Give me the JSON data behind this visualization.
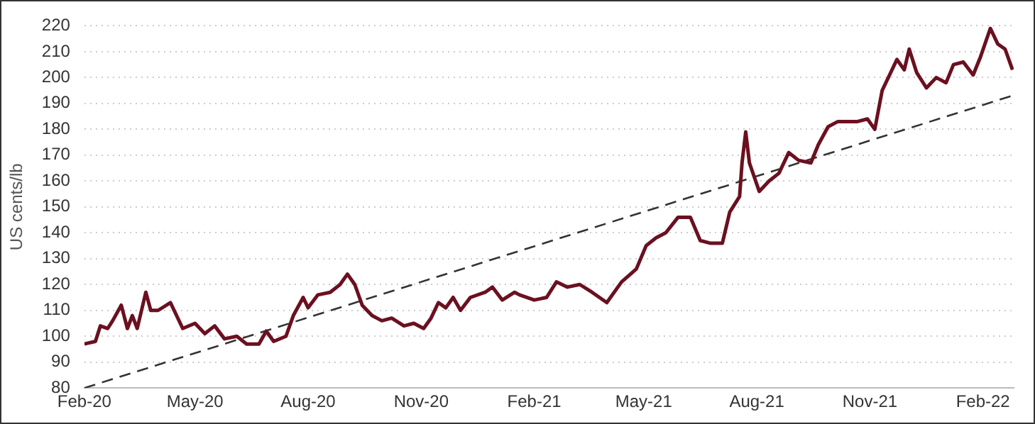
{
  "chart_data": {
    "type": "line",
    "ylabel": "US cents/lb",
    "ylim": [
      80,
      220
    ],
    "yticks": [
      80,
      90,
      100,
      110,
      120,
      130,
      140,
      150,
      160,
      170,
      180,
      190,
      200,
      210,
      220
    ],
    "xlim": [
      "2020-02-01",
      "2022-02-26"
    ],
    "xticks": [
      {
        "value": "2020-02-01",
        "label": "Feb-20"
      },
      {
        "value": "2020-05-01",
        "label": "May-20"
      },
      {
        "value": "2020-08-01",
        "label": "Aug-20"
      },
      {
        "value": "2020-11-01",
        "label": "Nov-20"
      },
      {
        "value": "2021-02-01",
        "label": "Feb-21"
      },
      {
        "value": "2021-05-01",
        "label": "May-21"
      },
      {
        "value": "2021-08-01",
        "label": "Aug-21"
      },
      {
        "value": "2021-11-01",
        "label": "Nov-21"
      },
      {
        "value": "2022-02-01",
        "label": "Feb-22"
      }
    ],
    "grid": "y",
    "legend": false,
    "marker": "none",
    "series": [
      {
        "color": "#6b1020",
        "line_style": "solid",
        "x": [
          "2020-02-01",
          "2020-02-10",
          "2020-02-14",
          "2020-02-20",
          "2020-02-24",
          "2020-03-02",
          "2020-03-07",
          "2020-03-11",
          "2020-03-15",
          "2020-03-22",
          "2020-03-26",
          "2020-04-01",
          "2020-04-11",
          "2020-04-21",
          "2020-05-01",
          "2020-05-09",
          "2020-05-17",
          "2020-05-25",
          "2020-06-04",
          "2020-06-12",
          "2020-06-22",
          "2020-06-28",
          "2020-07-04",
          "2020-07-14",
          "2020-07-20",
          "2020-07-28",
          "2020-08-01",
          "2020-08-09",
          "2020-08-19",
          "2020-08-27",
          "2020-09-02",
          "2020-09-08",
          "2020-09-14",
          "2020-09-22",
          "2020-09-30",
          "2020-10-08",
          "2020-10-18",
          "2020-10-26",
          "2020-11-03",
          "2020-11-09",
          "2020-11-15",
          "2020-11-21",
          "2020-11-27",
          "2020-12-03",
          "2020-12-11",
          "2020-12-23",
          "2020-12-29",
          "2021-01-06",
          "2021-01-16",
          "2021-01-20",
          "2021-02-01",
          "2021-02-11",
          "2021-02-19",
          "2021-02-28",
          "2021-03-10",
          "2021-03-20",
          "2021-04-01",
          "2021-04-13",
          "2021-04-25",
          "2021-05-03",
          "2021-05-11",
          "2021-05-19",
          "2021-05-29",
          "2021-06-08",
          "2021-06-16",
          "2021-06-24",
          "2021-07-04",
          "2021-07-10",
          "2021-07-18",
          "2021-07-20",
          "2021-07-23",
          "2021-07-26",
          "2021-08-03",
          "2021-08-11",
          "2021-08-19",
          "2021-08-27",
          "2021-09-04",
          "2021-09-14",
          "2021-09-20",
          "2021-09-28",
          "2021-10-06",
          "2021-10-14",
          "2021-10-22",
          "2021-10-30",
          "2021-11-05",
          "2021-11-11",
          "2021-11-17",
          "2021-11-23",
          "2021-11-29",
          "2021-12-03",
          "2021-12-09",
          "2021-12-17",
          "2021-12-25",
          "2022-01-02",
          "2022-01-08",
          "2022-01-16",
          "2022-01-24",
          "2022-01-30",
          "2022-02-07",
          "2022-02-13",
          "2022-02-19",
          "2022-02-25"
        ],
        "values": [
          97,
          98,
          104,
          103,
          106,
          112,
          103,
          108,
          103,
          117,
          110,
          110,
          113,
          103,
          105,
          101,
          104,
          99,
          100,
          97,
          97,
          102,
          98,
          100,
          108,
          115,
          111,
          116,
          117,
          120,
          124,
          120,
          112,
          108,
          106,
          107,
          104,
          105,
          103,
          107,
          113,
          111,
          115,
          110,
          115,
          117,
          119,
          114,
          117,
          116,
          114,
          115,
          121,
          119,
          120,
          117,
          113,
          121,
          126,
          135,
          138,
          140,
          146,
          146,
          137,
          136,
          136,
          148,
          154,
          167,
          179,
          167,
          156,
          160,
          163,
          171,
          168,
          167,
          174,
          181,
          183,
          183,
          183,
          184,
          180,
          195,
          201,
          207,
          203,
          211,
          202,
          196,
          200,
          198,
          205,
          206,
          201,
          208,
          219,
          213,
          211,
          203
        ]
      },
      {
        "color": "#333333",
        "line_style": "dashed",
        "x": [
          "2020-02-01",
          "2022-02-25"
        ],
        "values": [
          80,
          193
        ]
      }
    ]
  }
}
